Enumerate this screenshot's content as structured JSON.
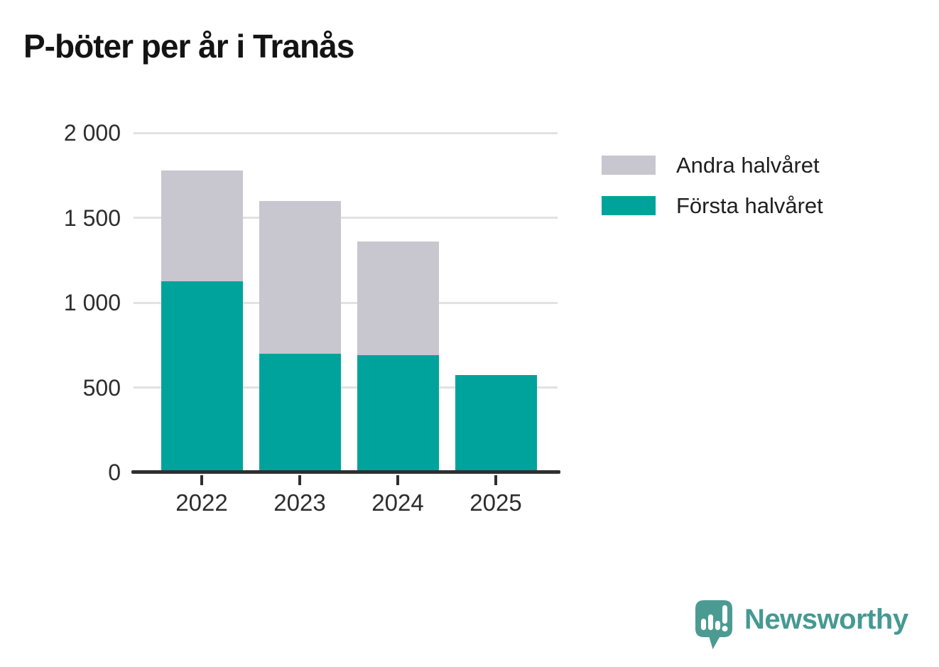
{
  "title": "P-böter per år i Tranås",
  "chart_data": {
    "type": "bar",
    "stacked": true,
    "title": "P-böter per år i Tranås",
    "xlabel": "",
    "ylabel": "",
    "categories": [
      "2022",
      "2023",
      "2024",
      "2025"
    ],
    "series": [
      {
        "name": "Första halvåret",
        "color": "#00a39b",
        "values": [
          1125,
          700,
          690,
          575
        ]
      },
      {
        "name": "Andra halvåret",
        "color": "#c8c6cf",
        "values": [
          655,
          900,
          670,
          0
        ]
      }
    ],
    "stack_totals": [
      1780,
      1600,
      1360,
      575
    ],
    "ylim": [
      0,
      2000
    ],
    "yticks": [
      0,
      500,
      1000,
      1500,
      2000
    ],
    "ytick_labels": [
      "0",
      "500",
      "1 000",
      "1 500",
      "2 000"
    ],
    "grid": true,
    "legend_position": "right"
  },
  "legend": {
    "items": [
      {
        "label": "Andra halvåret",
        "color": "#c8c6cf"
      },
      {
        "label": "Första halvåret",
        "color": "#00a39b"
      }
    ]
  },
  "branding": {
    "name": "Newsworthy",
    "text_color": "#459a92",
    "icon_color": "#4c9b93"
  },
  "style_colors": {
    "axis": "#2f2f2f",
    "gridline": "#e2e2e2",
    "tick_label": "#2d2d2d"
  }
}
